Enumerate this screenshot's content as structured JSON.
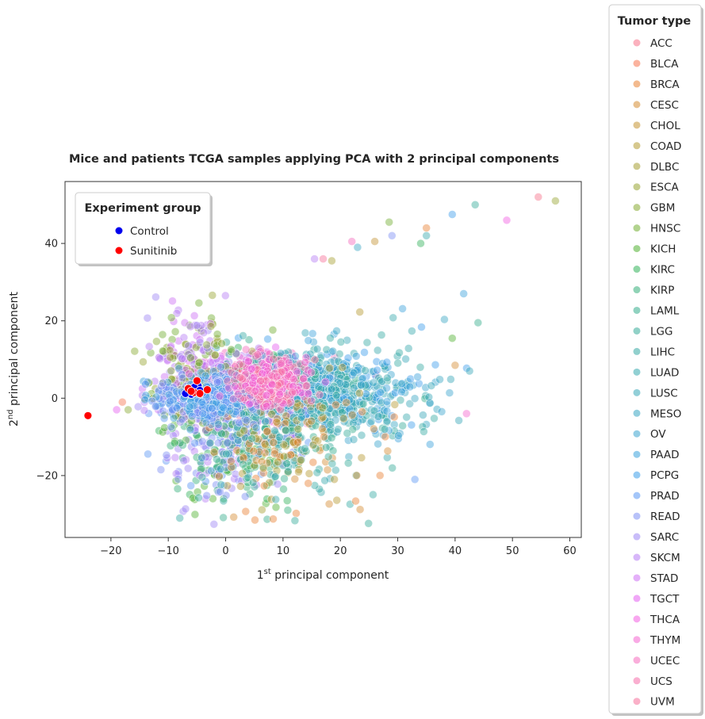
{
  "chart_data": {
    "type": "scatter",
    "title": "Mice and patients TCGA samples applying PCA with 2 principal components",
    "xlabel_main": "1",
    "xlabel_sup": "st",
    "xlabel_rest": " principal component",
    "ylabel_main": "2",
    "ylabel_sup": "nd",
    "ylabel_rest": " principal component",
    "xlim": [
      -28,
      62
    ],
    "ylim": [
      -36,
      56
    ],
    "xticks": [
      -20,
      -10,
      0,
      10,
      20,
      30,
      40,
      50,
      60
    ],
    "xtick_labels": [
      "−20",
      "−10",
      "0",
      "10",
      "20",
      "30",
      "40",
      "50",
      "60"
    ],
    "yticks": [
      -20,
      0,
      20,
      40
    ],
    "ytick_labels": [
      "−20",
      "0",
      "20",
      "40"
    ],
    "grid": false,
    "experiment_legend": {
      "title": "Experiment group",
      "placement": "upper-left",
      "entries": [
        {
          "label": "Control",
          "color": "#0000ee"
        },
        {
          "label": "Sunitinib",
          "color": "#ff0000"
        }
      ]
    },
    "tumor_legend": {
      "title": "Tumor type",
      "placement": "outside-right",
      "entries": [
        {
          "label": "ACC",
          "color": "#f77189"
        },
        {
          "label": "BLCA",
          "color": "#f7754f"
        },
        {
          "label": "BRCA",
          "color": "#e98132"
        },
        {
          "label": "CESC",
          "color": "#d58c32"
        },
        {
          "label": "CHOL",
          "color": "#c49332"
        },
        {
          "label": "COAD",
          "color": "#b59a31"
        },
        {
          "label": "DLBC",
          "color": "#a69f31"
        },
        {
          "label": "ESCA",
          "color": "#97a431"
        },
        {
          "label": "GBM",
          "color": "#87a931"
        },
        {
          "label": "HNSC",
          "color": "#72ae31"
        },
        {
          "label": "KICH",
          "color": "#50b131"
        },
        {
          "label": "KIRC",
          "color": "#32b25a"
        },
        {
          "label": "KIRP",
          "color": "#34af7a"
        },
        {
          "label": "LAML",
          "color": "#35ad8c"
        },
        {
          "label": "LGG",
          "color": "#36ab99"
        },
        {
          "label": "LIHC",
          "color": "#37aaa4"
        },
        {
          "label": "LUAD",
          "color": "#37a9ae"
        },
        {
          "label": "LUSC",
          "color": "#38a7b8"
        },
        {
          "label": "MESO",
          "color": "#39a6c3"
        },
        {
          "label": "OV",
          "color": "#3aa4cf"
        },
        {
          "label": "PAAD",
          "color": "#3ba2dc"
        },
        {
          "label": "PCPG",
          "color": "#3d9eea"
        },
        {
          "label": "PRAD",
          "color": "#5a97f4"
        },
        {
          "label": "READ",
          "color": "#7d8ff4"
        },
        {
          "label": "SARC",
          "color": "#9d86f4"
        },
        {
          "label": "SKCM",
          "color": "#b67cf4"
        },
        {
          "label": "STAD",
          "color": "#cd6ff4"
        },
        {
          "label": "TGCT",
          "color": "#e45ef0"
        },
        {
          "label": "THCA",
          "color": "#f25ee2"
        },
        {
          "label": "THYM",
          "color": "#f465cf"
        },
        {
          "label": "UCEC",
          "color": "#f56bbd"
        },
        {
          "label": "UCS",
          "color": "#f66eaa"
        },
        {
          "label": "UVM",
          "color": "#f6709a"
        }
      ]
    },
    "mice_points": {
      "Control": [
        [
          -6.5,
          1.5
        ],
        [
          -5.8,
          2.2
        ],
        [
          -5.2,
          1.8
        ],
        [
          -4.8,
          3.2
        ],
        [
          -6.0,
          1.0
        ],
        [
          -5.5,
          2.8
        ],
        [
          -4.5,
          2.0
        ],
        [
          -7.0,
          1.2
        ]
      ],
      "Sunitinib": [
        [
          -24,
          -4.5
        ],
        [
          -6.5,
          2.5
        ],
        [
          -5.5,
          1.5
        ],
        [
          -4.5,
          1.2
        ],
        [
          -3.2,
          2.2
        ],
        [
          -5.0,
          4.5
        ],
        [
          -6.0,
          1.8
        ]
      ]
    },
    "patient_points_notable": [
      [
        54.5,
        52
      ],
      [
        57.5,
        51
      ],
      [
        43.5,
        50
      ],
      [
        39.5,
        47.5
      ],
      [
        49,
        46
      ],
      [
        35,
        44
      ],
      [
        28.5,
        45.5
      ],
      [
        35,
        42
      ],
      [
        29,
        42
      ],
      [
        22,
        40.5
      ],
      [
        26,
        40.5
      ],
      [
        34,
        40
      ],
      [
        23,
        39
      ],
      [
        15.5,
        36
      ],
      [
        17,
        36
      ],
      [
        18.5,
        35.5
      ],
      [
        44,
        19.5
      ],
      [
        41.5,
        27
      ],
      [
        -19,
        -3
      ],
      [
        -18,
        -1
      ],
      [
        -17,
        -3
      ],
      [
        -8,
        -31
      ],
      [
        33,
        -21
      ],
      [
        42,
        -4
      ],
      [
        40,
        8.5
      ],
      [
        39.5,
        15.5
      ]
    ],
    "cluster_summary": {
      "note": "dense cloud of patient samples colored by tumor type",
      "x_range": [
        -15,
        45
      ],
      "y_range": [
        -32,
        36
      ],
      "center": [
        8,
        0
      ]
    }
  }
}
